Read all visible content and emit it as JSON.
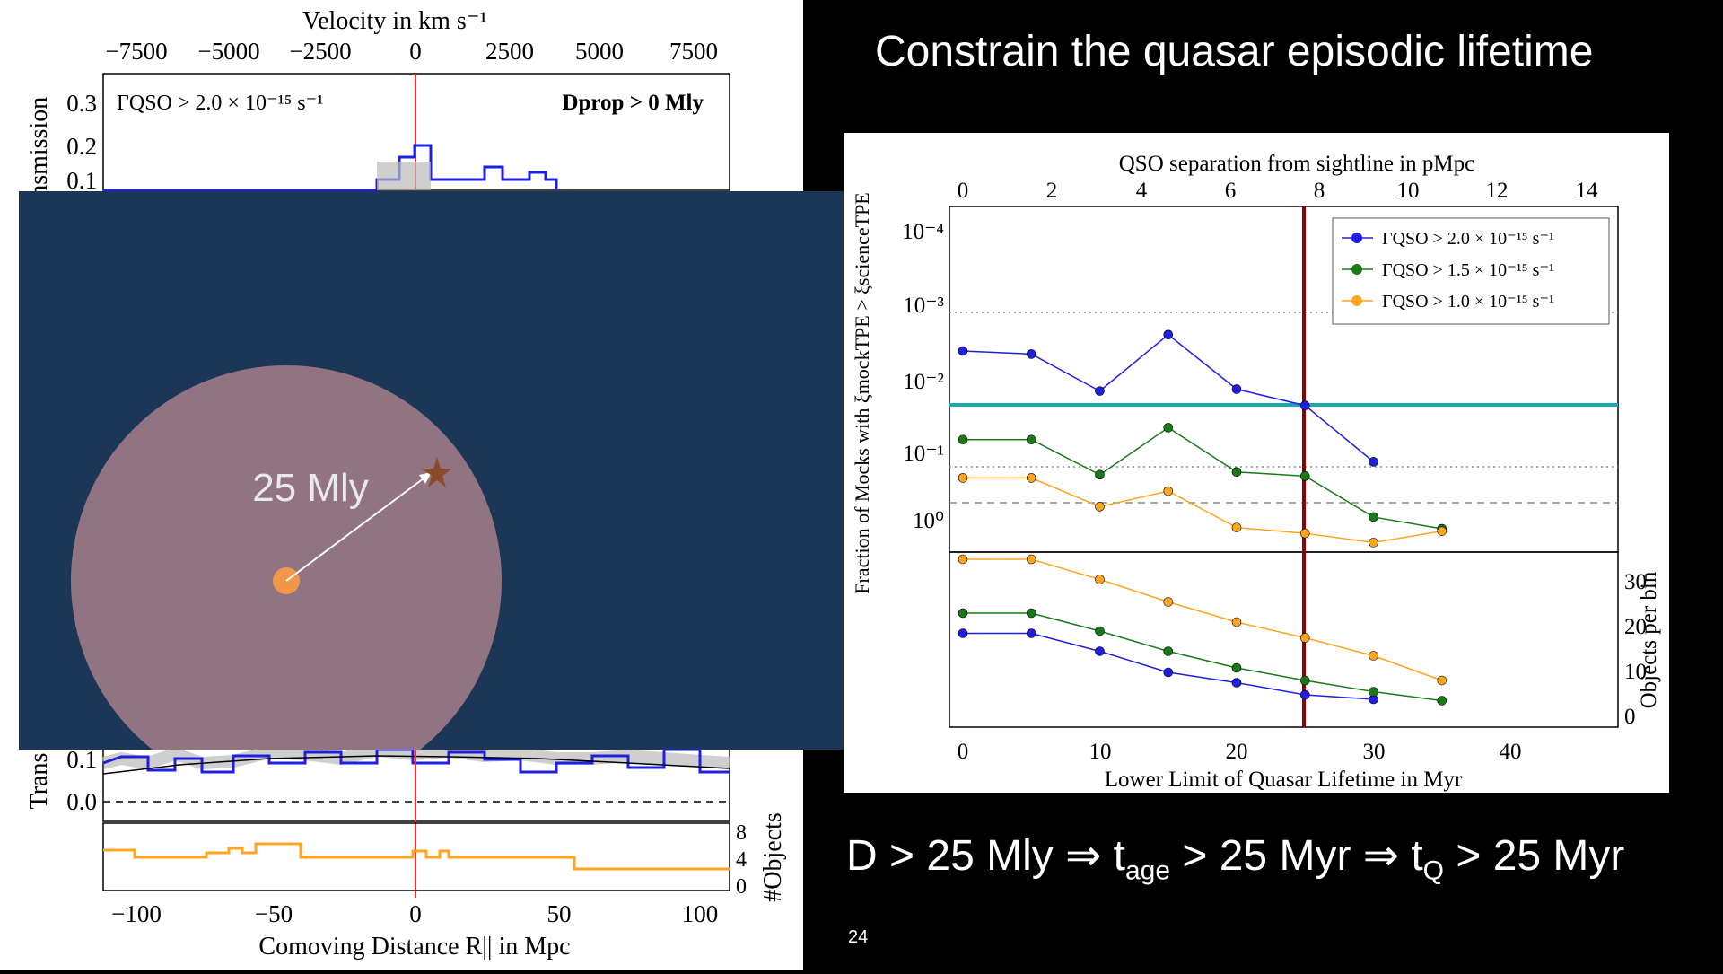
{
  "slide": {
    "title": "Constrain the quasar episodic lifetime",
    "page_number": "24",
    "formula": {
      "part1": "D > 25 Mly ⇒ t",
      "sub1": "age",
      "part2": " > 25 Myr  ⇒ t",
      "sub2": "Q",
      "part3": " > 25 Myr"
    }
  },
  "left_plot": {
    "top_axis_label": "Velocity in km s⁻¹",
    "top_ticks": [
      "−7500",
      "−5000",
      "−2500",
      "0",
      "2500",
      "5000",
      "7500"
    ],
    "bottom_axis_label": "Comoving Distance R|| in Mpc",
    "bottom_ticks": [
      "−100",
      "−50",
      "0",
      "50",
      "100"
    ],
    "y_label_top": "ansmission",
    "y_label_bottom": "Trans",
    "y_ticks_top": [
      "0.3",
      "0.2",
      "0.1"
    ],
    "y_ticks_bottom": [
      "0.1",
      "0.0"
    ],
    "objects_label": "#Objects",
    "objects_ticks": [
      "8",
      "4",
      "0"
    ],
    "annotation_left": "ΓQSO > 2.0 × 10⁻¹⁵ s⁻¹",
    "annotation_right": "Dprop > 0 Mly"
  },
  "overlay": {
    "distance_label": "25 Mly",
    "colors": {
      "background": "#1b3657",
      "circle": "#f4a6a6",
      "dot": "#f0974a",
      "star": "#8b4a2b"
    }
  },
  "right_plot": {
    "top_axis_label": "QSO separation from sightline in pMpc",
    "top_ticks": [
      "0",
      "2",
      "4",
      "6",
      "8",
      "10",
      "12",
      "14"
    ],
    "bottom_axis_label": "Lower Limit of Quasar Lifetime in Myr",
    "bottom_ticks": [
      "0",
      "10",
      "20",
      "30",
      "40"
    ],
    "y_label_left": "Fraction of Mocks with ξmockTPE > ξscienceTPE",
    "y_label_right": "Objects per bin",
    "y_ticks_top": [
      "10⁻⁴",
      "10⁻³",
      "10⁻²",
      "10⁻¹",
      "10⁰"
    ],
    "y_ticks_bottom": [
      "30",
      "20",
      "10",
      "0"
    ],
    "legend": [
      {
        "label": "ΓQSO > 2.0 × 10⁻¹⁵ s⁻¹",
        "color": "#1f1fe0"
      },
      {
        "label": "ΓQSO > 1.5 × 10⁻¹⁵ s⁻¹",
        "color": "#1a7a1a"
      },
      {
        "label": "ΓQSO > 1.0 × 10⁻¹⁵ s⁻¹",
        "color": "#ffa520"
      }
    ]
  },
  "chart_data": [
    {
      "type": "line",
      "title": "",
      "xlabel": "Lower Limit of Quasar Lifetime in Myr",
      "ylabel": "Fraction of Mocks with ξmockTPE > ξscienceTPE",
      "x_axis_top_label": "QSO separation from sightline in pMpc",
      "ylim_log_exponent": [
        -4.5,
        0.2
      ],
      "log_scale_y": true,
      "x": [
        0,
        5,
        10,
        15,
        20,
        25,
        30,
        35
      ],
      "series": [
        {
          "name": "ΓQSO > 2.0 × 10⁻¹⁵ s⁻¹",
          "values": [
            0.001,
            0.0011,
            0.0035,
            0.0006,
            0.0033,
            0.0055,
            0.032,
            null
          ]
        },
        {
          "name": "ΓQSO > 1.5 × 10⁻¹⁵ s⁻¹",
          "values": [
            0.016,
            0.016,
            0.048,
            0.011,
            0.044,
            0.05,
            0.18,
            0.26
          ]
        },
        {
          "name": "ΓQSO > 1.0 × 10⁻¹⁵ s⁻¹",
          "values": [
            0.053,
            0.053,
            0.13,
            0.08,
            0.25,
            0.3,
            0.4,
            0.28
          ]
        }
      ],
      "reference_lines": {
        "vertical_x": 25,
        "horizontal_fraction": 0.023
      },
      "legend_position": "top-right"
    },
    {
      "type": "line",
      "xlabel": "Lower Limit of Quasar Lifetime in Myr",
      "ylabel": "Objects per bin",
      "ylim": [
        0,
        36
      ],
      "x": [
        0,
        5,
        10,
        15,
        20,
        25,
        30,
        35
      ],
      "series": [
        {
          "name": "ΓQSO > 2.0 × 10⁻¹⁵ s⁻¹",
          "values": [
            18.5,
            18.5,
            14.5,
            9.8,
            7.5,
            4.8,
            3.8,
            null
          ]
        },
        {
          "name": "ΓQSO > 1.5 × 10⁻¹⁵ s⁻¹",
          "values": [
            23,
            23,
            19,
            14.5,
            10.8,
            8,
            5.5,
            3.5
          ]
        },
        {
          "name": "ΓQSO > 1.0 × 10⁻¹⁵ s⁻¹",
          "values": [
            35,
            35,
            30.5,
            25.5,
            21,
            17.5,
            13.5,
            8
          ]
        }
      ]
    }
  ]
}
